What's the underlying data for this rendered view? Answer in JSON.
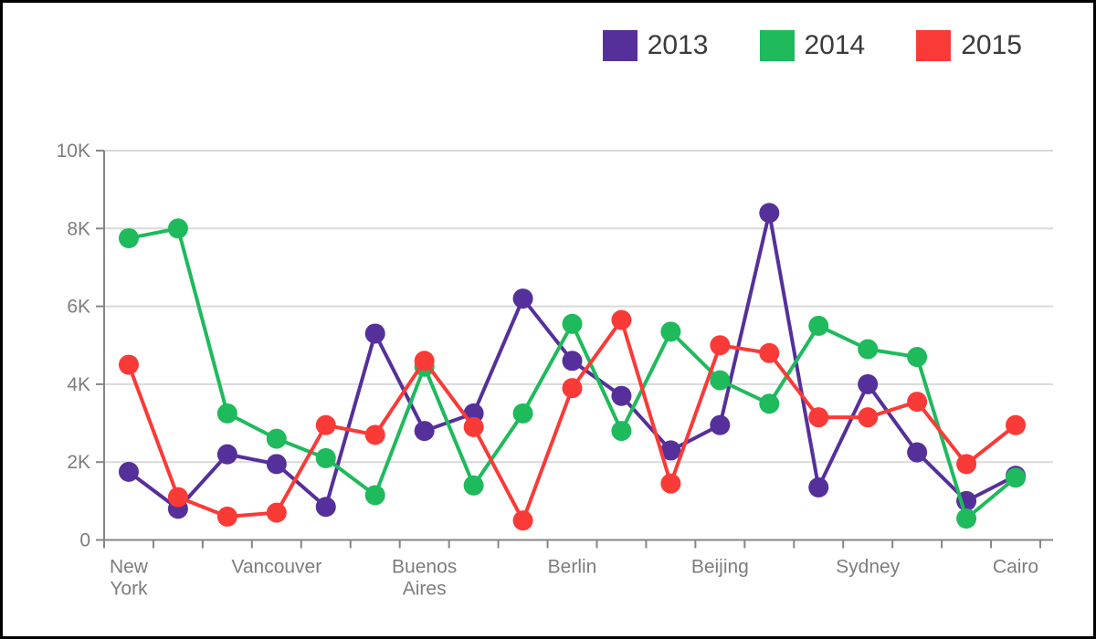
{
  "page": {
    "background": "#ffffff",
    "border_color": "#000000"
  },
  "chart_data": {
    "type": "line",
    "categories": [
      "New York",
      "",
      "",
      "Vancouver",
      "",
      "",
      "Buenos Aires",
      "",
      "",
      "Berlin",
      "",
      "",
      "Beijing",
      "",
      "",
      "Sydney",
      "",
      "",
      "Cairo"
    ],
    "x_labeled_indices": [
      0,
      3,
      6,
      9,
      12,
      15,
      18
    ],
    "x_tick_labels": [
      "New York",
      "Vancouver",
      "Buenos Aires",
      "Berlin",
      "Beijing",
      "Sydney",
      "Cairo"
    ],
    "series": [
      {
        "name": "2013",
        "color": "#55309a",
        "values": [
          1750,
          800,
          2200,
          1950,
          850,
          5300,
          2800,
          3250,
          6200,
          4600,
          3700,
          2300,
          2950,
          8400,
          1350,
          4000,
          2250,
          1000,
          1650
        ]
      },
      {
        "name": "2014",
        "color": "#1eba5c",
        "values": [
          7750,
          8000,
          3250,
          2600,
          2100,
          1150,
          4450,
          1400,
          3250,
          5550,
          2800,
          5350,
          4100,
          3500,
          5500,
          4900,
          4700,
          550,
          1600
        ]
      },
      {
        "name": "2015",
        "color": "#fa3a37",
        "values": [
          4500,
          1100,
          600,
          700,
          2950,
          2700,
          4600,
          2900,
          500,
          3900,
          5650,
          1450,
          5000,
          4800,
          3150,
          3150,
          3550,
          1950,
          2950
        ]
      }
    ],
    "ylim": [
      0,
      10000
    ],
    "y_tick_values": [
      0,
      2000,
      4000,
      6000,
      8000,
      10000
    ],
    "y_tick_labels": [
      "0",
      "2K",
      "4K",
      "6K",
      "8K",
      "10K"
    ],
    "grid": "horizontal",
    "legend_position": "top-right",
    "axis_color": "#868686",
    "grid_color": "#d9d9d9",
    "tick_label_color": "#7d7d7d"
  }
}
